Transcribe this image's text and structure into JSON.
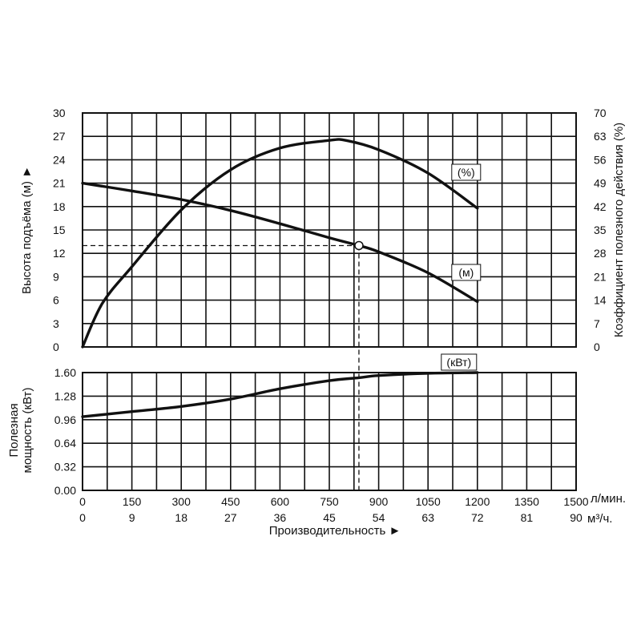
{
  "chart_data": [
    {
      "type": "line",
      "panel": "head-efficiency",
      "x_unit_top": "л/мин.",
      "x_unit_bottom": "м³/ч.",
      "xlim": [
        0,
        1500
      ],
      "xticks_lpm": [
        "0",
        "150",
        "300",
        "450",
        "600",
        "750",
        "900",
        "1050",
        "1200",
        "1350",
        "1500"
      ],
      "xticks_m3h": [
        "0",
        "9",
        "18",
        "27",
        "36",
        "45",
        "54",
        "63",
        "72",
        "81",
        "90"
      ],
      "xlabel": "Производительность ►",
      "ylabel": "Высота подъёма (м) ►",
      "ylim": [
        0,
        30
      ],
      "yticks": [
        "0",
        "3",
        "6",
        "9",
        "12",
        "15",
        "18",
        "21",
        "24",
        "27",
        "30"
      ],
      "y2label": "Коэффициент полезного действия (%)",
      "y2lim": [
        0,
        70
      ],
      "y2ticks": [
        "0",
        "7",
        "14",
        "21",
        "28",
        "35",
        "42",
        "49",
        "56",
        "63",
        "70"
      ],
      "series": [
        {
          "name": "(м)",
          "axis": "left",
          "x": [
            0,
            150,
            300,
            450,
            600,
            750,
            840,
            900,
            1050,
            1200
          ],
          "y": [
            21.0,
            20.0,
            18.9,
            17.5,
            15.8,
            14.0,
            13.0,
            12.2,
            9.5,
            5.8
          ]
        },
        {
          "name": "(%)",
          "axis": "right",
          "x": [
            0,
            60,
            150,
            300,
            450,
            600,
            750,
            800,
            900,
            1050,
            1200
          ],
          "y": [
            0,
            13,
            24,
            41,
            53,
            59.5,
            61.8,
            61.8,
            59,
            52,
            41.5
          ]
        }
      ],
      "operating_point": {
        "x": 840,
        "y": 13.0
      }
    },
    {
      "type": "line",
      "panel": "power",
      "xlim": [
        0,
        1500
      ],
      "ylabel": "Полезная мощность (кВт)",
      "ylim": [
        0,
        1.6
      ],
      "yticks": [
        "0.00",
        "0.32",
        "0.64",
        "0.96",
        "1.28",
        "1.60"
      ],
      "series": [
        {
          "name": "(кВт)",
          "axis": "left",
          "x": [
            0,
            150,
            300,
            450,
            600,
            750,
            840,
            900,
            1050,
            1200
          ],
          "y": [
            1.0,
            1.07,
            1.14,
            1.24,
            1.38,
            1.49,
            1.53,
            1.56,
            1.59,
            1.6
          ]
        }
      ]
    }
  ]
}
